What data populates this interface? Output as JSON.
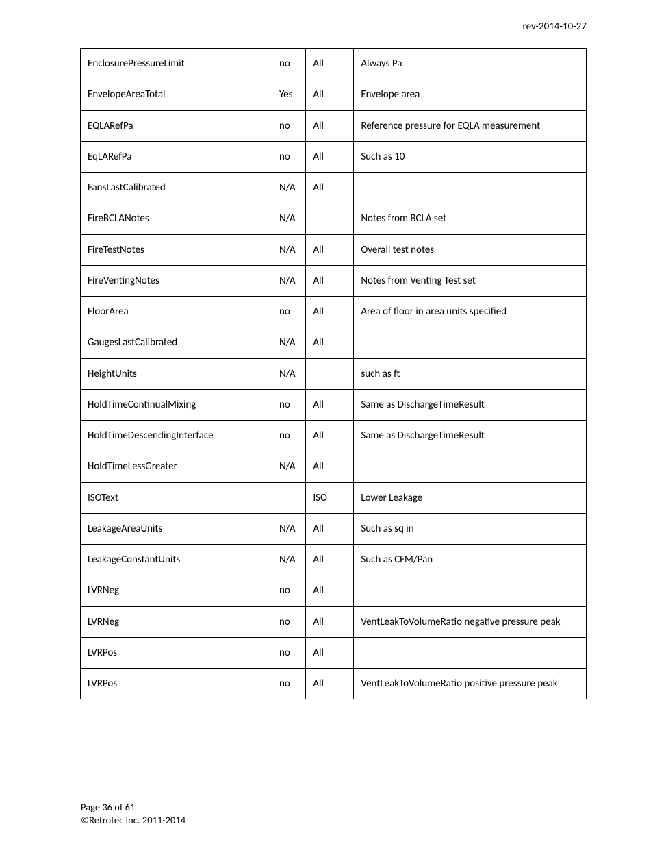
{
  "header": {
    "revision": "rev-2014-10-27"
  },
  "table": {
    "rows": [
      {
        "c1": "EnclosurePressureLimit",
        "c2": "no",
        "c3": "All",
        "c4": "Always Pa"
      },
      {
        "c1": "EnvelopeAreaTotal",
        "c2": "Yes",
        "c3": "All",
        "c4": "Envelope area"
      },
      {
        "c1": "EQLARefPa",
        "c2": "no",
        "c3": "All",
        "c4": "Reference pressure for EQLA measurement"
      },
      {
        "c1": "EqLARefPa",
        "c2": "no",
        "c3": "All",
        "c4": "Such as 10"
      },
      {
        "c1": "FansLastCalibrated",
        "c2": "N/A",
        "c3": "All",
        "c4": ""
      },
      {
        "c1": "FireBCLANotes",
        "c2": "N/A",
        "c3": "",
        "c4": "Notes from BCLA set"
      },
      {
        "c1": "FireTestNotes",
        "c2": "N/A",
        "c3": "All",
        "c4": "Overall test notes"
      },
      {
        "c1": "FireVentingNotes",
        "c2": "N/A",
        "c3": "All",
        "c4": "Notes from Venting Test set"
      },
      {
        "c1": "FloorArea",
        "c2": "no",
        "c3": "All",
        "c4": "Area of floor in area units specified"
      },
      {
        "c1": "GaugesLastCalibrated",
        "c2": "N/A",
        "c3": "All",
        "c4": ""
      },
      {
        "c1": "HeightUnits",
        "c2": "N/A",
        "c3": "",
        "c4": "such as ft"
      },
      {
        "c1": "HoldTimeContinualMixing",
        "c2": "no",
        "c3": "All",
        "c4": "Same as DischargeTimeResult"
      },
      {
        "c1": "HoldTimeDescendingInterface",
        "c2": "no",
        "c3": "All",
        "c4": "Same as DischargeTimeResult"
      },
      {
        "c1": "HoldTimeLessGreater",
        "c2": "N/A",
        "c3": "All",
        "c4": ""
      },
      {
        "c1": "ISOText",
        "c2": "",
        "c3": "ISO",
        "c4": "Lower Leakage"
      },
      {
        "c1": "LeakageAreaUnits",
        "c2": "N/A",
        "c3": "All",
        "c4": "Such as sq in"
      },
      {
        "c1": "LeakageConstantUnits",
        "c2": "N/A",
        "c3": "All",
        "c4": "Such as CFM/Pan"
      },
      {
        "c1": "LVRNeg",
        "c2": "no",
        "c3": "All",
        "c4": ""
      },
      {
        "c1": "LVRNeg",
        "c2": "no",
        "c3": "All",
        "c4": "VentLeakToVolumeRatio negative pressure peak"
      },
      {
        "c1": "LVRPos",
        "c2": "no",
        "c3": "All",
        "c4": ""
      },
      {
        "c1": "LVRPos",
        "c2": "no",
        "c3": "All",
        "c4": "VentLeakToVolumeRatio positive pressure peak"
      }
    ]
  },
  "footer": {
    "page_info": "Page 36 of 61",
    "copyright": "©Retrotec Inc. 2011-2014"
  }
}
